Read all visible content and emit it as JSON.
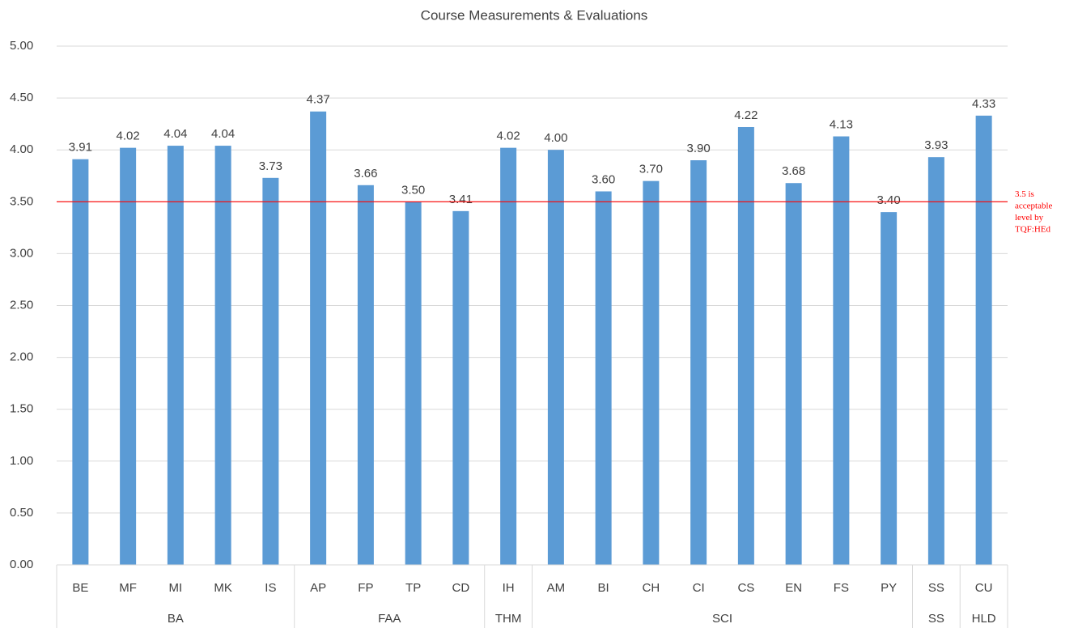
{
  "chart_data": {
    "type": "bar",
    "title": "Course Measurements & Evaluations",
    "groups": [
      {
        "name": "BA",
        "categories": [
          "BE",
          "MF",
          "MI",
          "MK",
          "IS"
        ]
      },
      {
        "name": "FAA",
        "categories": [
          "AP",
          "FP",
          "TP",
          "CD"
        ]
      },
      {
        "name": "THM",
        "categories": [
          "IH"
        ]
      },
      {
        "name": "SCI",
        "categories": [
          "AM",
          "BI",
          "CH",
          "CI",
          "CS",
          "EN",
          "FS",
          "PY"
        ]
      },
      {
        "name": "SS",
        "categories": [
          "SS"
        ]
      },
      {
        "name": "HLD",
        "categories": [
          "CU"
        ]
      }
    ],
    "values": [
      3.91,
      4.02,
      4.04,
      4.04,
      3.73,
      4.37,
      3.66,
      3.5,
      3.41,
      4.02,
      4,
      3.6,
      3.7,
      3.9,
      4.22,
      3.68,
      4.13,
      3.4,
      3.93,
      4.33
    ],
    "value_labels": [
      "3.91",
      "4.02",
      "4.04",
      "4.04",
      "3.73",
      "4.37",
      "3.66",
      "3.50",
      "3.41",
      "4.02",
      "4.00",
      "3.60",
      "3.70",
      "3.90",
      "4.22",
      "3.68",
      "4.13",
      "3.40",
      "3.93",
      "4.33"
    ],
    "color": "#5b9bd5",
    "ylim": [
      0,
      5
    ],
    "yticks": [
      {
        "value": 0,
        "label": "0.00"
      },
      {
        "value": 0.5,
        "label": "0.50"
      },
      {
        "value": 1,
        "label": "1.00"
      },
      {
        "value": 1.5,
        "label": "1.50"
      },
      {
        "value": 2,
        "label": "2.00"
      },
      {
        "value": 2.5,
        "label": "2.50"
      },
      {
        "value": 3,
        "label": "3.00"
      },
      {
        "value": 3.5,
        "label": "3.50"
      },
      {
        "value": 4,
        "label": "4.00"
      },
      {
        "value": 4.5,
        "label": "4.50"
      },
      {
        "value": 5,
        "label": "5.00"
      }
    ],
    "grid": true,
    "reference_line": {
      "value": 3.5,
      "color": "#ff0000",
      "label": [
        "3.5 is",
        "acceptable",
        "level by",
        "TQF:HEd"
      ]
    }
  }
}
